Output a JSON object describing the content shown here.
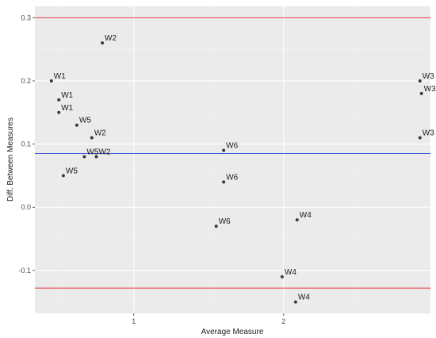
{
  "chart_data": {
    "type": "scatter",
    "xlabel": "Average Measure",
    "ylabel": "Diff. Between Measures",
    "xlim": [
      0.34,
      2.98
    ],
    "ylim": [
      -0.168,
      0.318
    ],
    "x_ticks": [
      1,
      2
    ],
    "y_ticks": [
      -0.1,
      0.0,
      0.1,
      0.2,
      0.3
    ],
    "y_tick_labels": [
      "-0.1",
      "0.0",
      "0.1",
      "0.2",
      "0.3"
    ],
    "grid": true,
    "legend": "none",
    "hlines": [
      {
        "y": 0.3,
        "color": "#e8383d"
      },
      {
        "y": 0.085,
        "color": "#3b5bd9"
      },
      {
        "y": -0.128,
        "color": "#e8383d"
      }
    ],
    "points": [
      {
        "x": 0.79,
        "y": 0.26,
        "label": "W2"
      },
      {
        "x": 0.45,
        "y": 0.2,
        "label": "W1"
      },
      {
        "x": 0.5,
        "y": 0.17,
        "label": "W1"
      },
      {
        "x": 0.5,
        "y": 0.15,
        "label": "W1"
      },
      {
        "x": 0.62,
        "y": 0.13,
        "label": "W5"
      },
      {
        "x": 0.72,
        "y": 0.11,
        "label": "W2"
      },
      {
        "x": 0.67,
        "y": 0.08,
        "label": "W5"
      },
      {
        "x": 0.75,
        "y": 0.08,
        "label": "W2"
      },
      {
        "x": 0.53,
        "y": 0.05,
        "label": "W5"
      },
      {
        "x": 1.6,
        "y": 0.09,
        "label": "W6"
      },
      {
        "x": 1.6,
        "y": 0.04,
        "label": "W6"
      },
      {
        "x": 1.55,
        "y": -0.03,
        "label": "W6"
      },
      {
        "x": 2.09,
        "y": -0.02,
        "label": "W4"
      },
      {
        "x": 1.99,
        "y": -0.11,
        "label": "W4"
      },
      {
        "x": 2.08,
        "y": -0.15,
        "label": "W4"
      },
      {
        "x": 2.91,
        "y": 0.2,
        "label": "W3"
      },
      {
        "x": 2.92,
        "y": 0.18,
        "label": "W3"
      },
      {
        "x": 2.91,
        "y": 0.11,
        "label": "W3"
      }
    ],
    "colors": {
      "panel": "#ebebeb",
      "grid_major": "#ffffff",
      "grid_minor": "#f4f4f4",
      "point": "#3a3a3a"
    }
  }
}
